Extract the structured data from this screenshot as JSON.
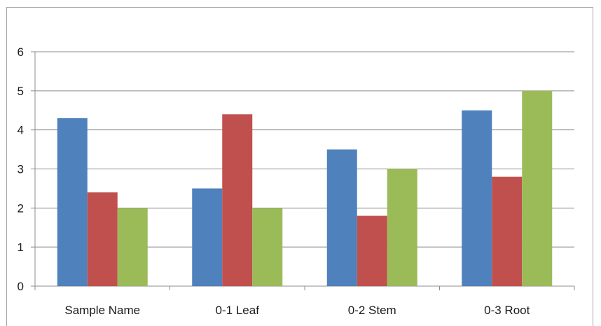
{
  "chart_data": {
    "type": "bar",
    "title": "",
    "xlabel": "",
    "ylabel": "",
    "categories": [
      "Sample Name",
      "0-1  Leaf",
      "0-2 Stem",
      "0-3 Root"
    ],
    "series": [
      {
        "color": "#4f81bd",
        "values": [
          4.3,
          2.5,
          3.5,
          4.5
        ]
      },
      {
        "color": "#c0504d",
        "values": [
          2.4,
          4.4,
          1.8,
          2.8
        ]
      },
      {
        "color": "#9bbb59",
        "values": [
          2.0,
          2.0,
          3.0,
          5.0
        ]
      }
    ],
    "ylim": [
      0,
      6
    ],
    "yticks": [
      "0",
      "1",
      "2",
      "3",
      "4",
      "5",
      "6"
    ],
    "grid": true,
    "legend": "none"
  }
}
